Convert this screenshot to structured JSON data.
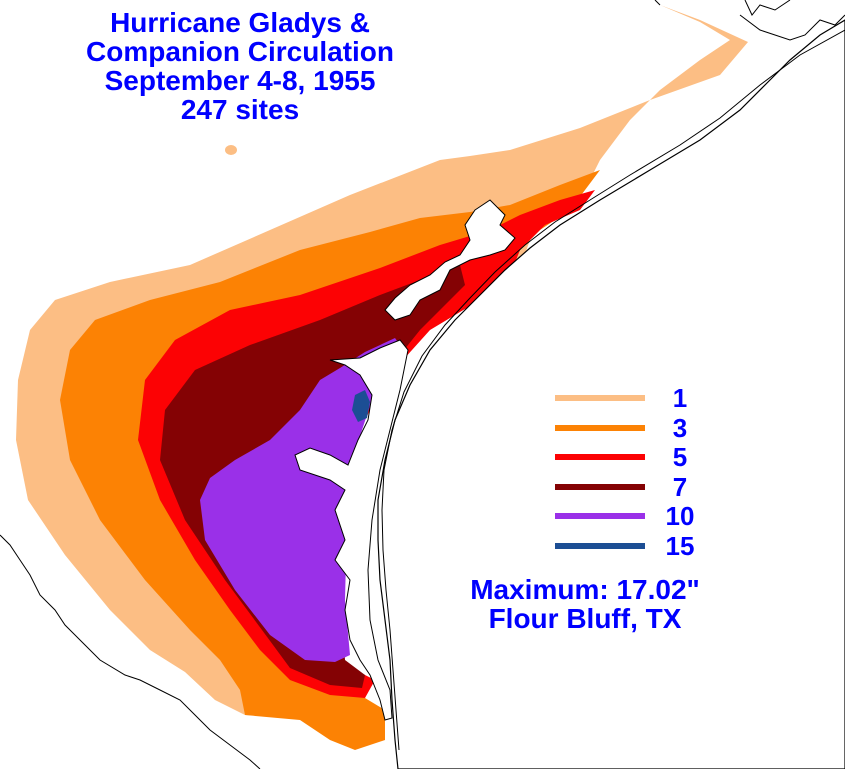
{
  "title": {
    "line1": "Hurricane Gladys &",
    "line2": "Companion Circulation",
    "line3": "September 4-8, 1955",
    "line4": "247 sites"
  },
  "legend": [
    {
      "value": "1",
      "color": "#fcbe84"
    },
    {
      "value": "3",
      "color": "#fc8204"
    },
    {
      "value": "5",
      "color": "#fc0204"
    },
    {
      "value": "7",
      "color": "#840204"
    },
    {
      "value": "10",
      "color": "#9a30e8"
    },
    {
      "value": "15",
      "color": "#1c4e94"
    }
  ],
  "maximum": {
    "label": "Maximum:  17.02\"",
    "location": "Flour Bluff, TX"
  },
  "colors": {
    "text": "#0000ff",
    "land_border": "#000000",
    "water": "#ffffff"
  }
}
